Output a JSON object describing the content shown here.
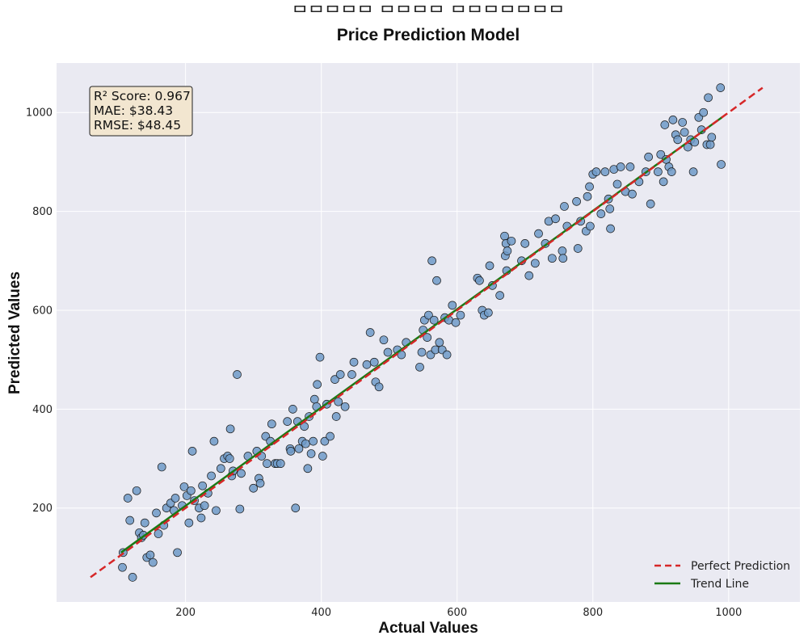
{
  "chart_data": {
    "type": "scatter",
    "title_line1": "ᄆᄆᄆᄆᄆ ᄆᄆᄆᄆ ᄆᄆᄆᄆᄆᄆᄆ",
    "title": "Price Prediction Model",
    "xlabel": "Actual Values",
    "ylabel": "Predicted Values",
    "xlim": [
      10,
      1105
    ],
    "ylim": [
      10,
      1100
    ],
    "xticks": [
      200,
      400,
      600,
      800,
      1000
    ],
    "yticks": [
      200,
      400,
      600,
      800,
      1000
    ],
    "grid": true,
    "legend_position": "bottom-right",
    "colors": {
      "plot_background": "#eaeaf2",
      "points": "#6e9ac8",
      "point_edge": "#1a1a1a",
      "perfect_line": "#d62728",
      "trend_line": "#1a7a14",
      "stats_box": "#f2e6d0"
    },
    "stats": {
      "r2": "R² Score: 0.967",
      "mae": "MAE: $38.43",
      "rmse": "RMSE: $48.45"
    },
    "series": [
      {
        "name": "Perfect Prediction",
        "kind": "line",
        "x": [
          60,
          1050
        ],
        "y": [
          60,
          1050
        ]
      },
      {
        "name": "Trend Line",
        "kind": "line",
        "x": [
          105,
          990
        ],
        "y": [
          110,
          990
        ]
      }
    ],
    "points": [
      [
        108,
        110
      ],
      [
        107,
        80
      ],
      [
        115,
        220
      ],
      [
        118,
        175
      ],
      [
        122,
        60
      ],
      [
        128,
        235
      ],
      [
        132,
        150
      ],
      [
        135,
        140
      ],
      [
        138,
        145
      ],
      [
        140,
        170
      ],
      [
        143,
        100
      ],
      [
        148,
        105
      ],
      [
        152,
        90
      ],
      [
        157,
        190
      ],
      [
        160,
        148
      ],
      [
        165,
        283
      ],
      [
        168,
        165
      ],
      [
        172,
        200
      ],
      [
        178,
        210
      ],
      [
        183,
        195
      ],
      [
        185,
        220
      ],
      [
        188,
        110
      ],
      [
        195,
        205
      ],
      [
        198,
        243
      ],
      [
        202,
        225
      ],
      [
        205,
        170
      ],
      [
        208,
        235
      ],
      [
        210,
        315
      ],
      [
        213,
        215
      ],
      [
        220,
        200
      ],
      [
        223,
        180
      ],
      [
        225,
        245
      ],
      [
        228,
        205
      ],
      [
        233,
        230
      ],
      [
        238,
        265
      ],
      [
        242,
        335
      ],
      [
        245,
        195
      ],
      [
        252,
        280
      ],
      [
        257,
        300
      ],
      [
        262,
        305
      ],
      [
        265,
        300
      ],
      [
        266,
        360
      ],
      [
        268,
        265
      ],
      [
        270,
        275
      ],
      [
        276,
        470
      ],
      [
        280,
        198
      ],
      [
        282,
        270
      ],
      [
        292,
        305
      ],
      [
        300,
        240
      ],
      [
        305,
        315
      ],
      [
        308,
        260
      ],
      [
        310,
        250
      ],
      [
        312,
        305
      ],
      [
        318,
        345
      ],
      [
        320,
        290
      ],
      [
        325,
        335
      ],
      [
        327,
        370
      ],
      [
        332,
        290
      ],
      [
        335,
        290
      ],
      [
        340,
        290
      ],
      [
        350,
        375
      ],
      [
        354,
        320
      ],
      [
        355,
        315
      ],
      [
        358,
        400
      ],
      [
        362,
        200
      ],
      [
        365,
        375
      ],
      [
        367,
        320
      ],
      [
        372,
        335
      ],
      [
        375,
        365
      ],
      [
        377,
        330
      ],
      [
        380,
        280
      ],
      [
        382,
        385
      ],
      [
        385,
        310
      ],
      [
        388,
        335
      ],
      [
        390,
        420
      ],
      [
        393,
        405
      ],
      [
        394,
        450
      ],
      [
        398,
        505
      ],
      [
        402,
        305
      ],
      [
        405,
        335
      ],
      [
        408,
        410
      ],
      [
        413,
        345
      ],
      [
        420,
        460
      ],
      [
        422,
        385
      ],
      [
        425,
        415
      ],
      [
        428,
        470
      ],
      [
        435,
        405
      ],
      [
        445,
        470
      ],
      [
        448,
        495
      ],
      [
        467,
        490
      ],
      [
        472,
        555
      ],
      [
        478,
        495
      ],
      [
        480,
        455
      ],
      [
        485,
        445
      ],
      [
        492,
        540
      ],
      [
        498,
        515
      ],
      [
        512,
        520
      ],
      [
        518,
        510
      ],
      [
        525,
        535
      ],
      [
        545,
        485
      ],
      [
        548,
        515
      ],
      [
        550,
        560
      ],
      [
        552,
        580
      ],
      [
        556,
        545
      ],
      [
        558,
        590
      ],
      [
        561,
        510
      ],
      [
        563,
        700
      ],
      [
        566,
        580
      ],
      [
        568,
        520
      ],
      [
        570,
        660
      ],
      [
        574,
        535
      ],
      [
        578,
        520
      ],
      [
        582,
        585
      ],
      [
        585,
        510
      ],
      [
        588,
        580
      ],
      [
        593,
        610
      ],
      [
        598,
        575
      ],
      [
        605,
        590
      ],
      [
        630,
        665
      ],
      [
        633,
        660
      ],
      [
        637,
        600
      ],
      [
        640,
        590
      ],
      [
        646,
        595
      ],
      [
        648,
        690
      ],
      [
        652,
        650
      ],
      [
        663,
        630
      ],
      [
        670,
        750
      ],
      [
        671,
        710
      ],
      [
        672,
        735
      ],
      [
        673,
        680
      ],
      [
        674,
        720
      ],
      [
        680,
        740
      ],
      [
        695,
        700
      ],
      [
        700,
        735
      ],
      [
        706,
        670
      ],
      [
        715,
        695
      ],
      [
        720,
        755
      ],
      [
        730,
        735
      ],
      [
        735,
        780
      ],
      [
        740,
        705
      ],
      [
        745,
        785
      ],
      [
        755,
        720
      ],
      [
        756,
        705
      ],
      [
        758,
        810
      ],
      [
        762,
        770
      ],
      [
        776,
        820
      ],
      [
        778,
        725
      ],
      [
        782,
        780
      ],
      [
        790,
        760
      ],
      [
        792,
        830
      ],
      [
        795,
        850
      ],
      [
        796,
        770
      ],
      [
        800,
        875
      ],
      [
        805,
        880
      ],
      [
        812,
        795
      ],
      [
        818,
        880
      ],
      [
        823,
        825
      ],
      [
        825,
        805
      ],
      [
        826,
        765
      ],
      [
        831,
        885
      ],
      [
        836,
        855
      ],
      [
        841,
        890
      ],
      [
        848,
        840
      ],
      [
        855,
        890
      ],
      [
        858,
        835
      ],
      [
        868,
        860
      ],
      [
        878,
        880
      ],
      [
        882,
        910
      ],
      [
        885,
        815
      ],
      [
        896,
        880
      ],
      [
        900,
        915
      ],
      [
        904,
        860
      ],
      [
        906,
        975
      ],
      [
        908,
        905
      ],
      [
        912,
        890
      ],
      [
        916,
        880
      ],
      [
        918,
        985
      ],
      [
        922,
        955
      ],
      [
        925,
        945
      ],
      [
        932,
        980
      ],
      [
        935,
        960
      ],
      [
        940,
        930
      ],
      [
        944,
        945
      ],
      [
        948,
        880
      ],
      [
        950,
        940
      ],
      [
        956,
        990
      ],
      [
        960,
        965
      ],
      [
        963,
        1000
      ],
      [
        968,
        935
      ],
      [
        970,
        1030
      ],
      [
        973,
        935
      ],
      [
        975,
        950
      ],
      [
        988,
        1050
      ],
      [
        989,
        895
      ]
    ]
  }
}
